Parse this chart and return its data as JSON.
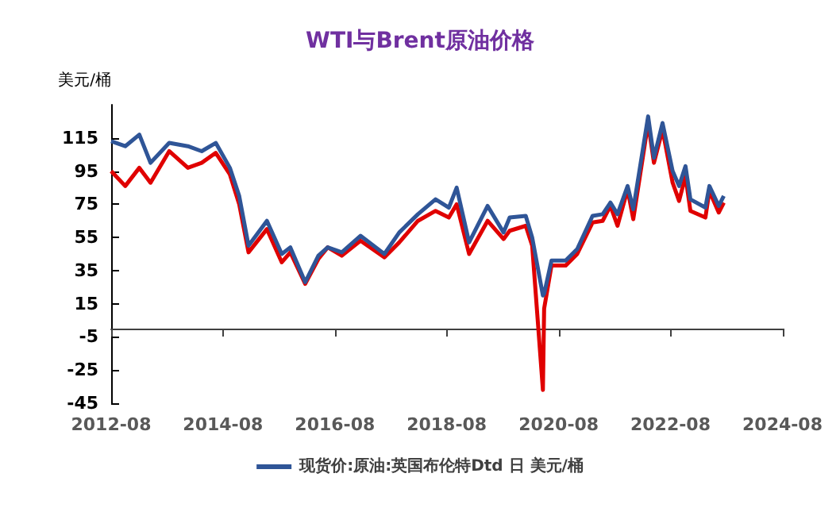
{
  "chart_data": {
    "type": "line",
    "title": "WTI与Brent原油价格",
    "ylabel": "美元/桶",
    "x": [
      "2012-08-01",
      "2012-11-01",
      "2013-02-01",
      "2013-04-15",
      "2013-08-15",
      "2013-12-15",
      "2014-03-15",
      "2014-06-15",
      "2014-09-15",
      "2014-11-15",
      "2015-01-15",
      "2015-05-15",
      "2015-08-20",
      "2015-10-15",
      "2016-01-20",
      "2016-04-15",
      "2016-06-15",
      "2016-09-15",
      "2017-01-15",
      "2017-06-20",
      "2017-09-25",
      "2018-01-25",
      "2018-05-20",
      "2018-08-15",
      "2018-10-05",
      "2018-12-25",
      "2019-04-25",
      "2019-08-07",
      "2019-09-16",
      "2019-12-30",
      "2020-02-10",
      "2020-04-20",
      "2020-04-28",
      "2020-06-15",
      "2020-09-15",
      "2020-11-30",
      "2021-03-10",
      "2021-05-15",
      "2021-07-05",
      "2021-08-20",
      "2021-10-25",
      "2021-12-01",
      "2022-03-08",
      "2022-04-15",
      "2022-06-10",
      "2022-08-15",
      "2022-09-26",
      "2022-11-07",
      "2022-12-09",
      "2023-03-17",
      "2023-04-12",
      "2023-06-12",
      "2023-07-15"
    ],
    "series": [
      {
        "name": "现货价:原油:英国布伦特Dtd 日 美元/桶",
        "color": "#2f5597",
        "values": [
          113,
          110,
          117,
          100,
          112,
          110,
          107,
          112,
          97,
          80,
          50,
          65,
          45,
          49,
          28,
          44,
          49,
          46,
          56,
          45,
          58,
          69,
          78,
          73,
          85,
          52,
          74,
          58,
          67,
          68,
          55,
          20,
          21,
          41,
          41,
          48,
          68,
          69,
          76,
          69,
          86,
          72,
          128,
          103,
          124,
          95,
          86,
          98,
          78,
          73,
          86,
          74,
          80
        ]
      },
      {
        "color": "#e00000",
        "values": [
          95,
          86,
          97,
          88,
          107,
          97,
          100,
          106,
          93,
          75,
          46,
          60,
          40,
          46,
          27,
          42,
          49,
          44,
          53,
          43,
          52,
          65,
          71,
          67,
          75,
          45,
          65,
          54,
          59,
          62,
          50,
          -37,
          12,
          38,
          38,
          45,
          64,
          65,
          74,
          62,
          84,
          66,
          124,
          100,
          120,
          88,
          77,
          92,
          71,
          67,
          83,
          70,
          76
        ]
      }
    ],
    "xlim": [
      "2012-08-01",
      "2024-08-01"
    ],
    "xticks": [
      "2012-08",
      "2014-08",
      "2016-08",
      "2018-08",
      "2020-08",
      "2022-08",
      "2024-08"
    ],
    "ylim": [
      -45,
      135
    ],
    "yticks": [
      -45,
      -25,
      -5,
      15,
      35,
      55,
      75,
      95,
      115
    ],
    "grid": false,
    "legend": "bottom",
    "marker": "none",
    "line_style": "solid"
  }
}
